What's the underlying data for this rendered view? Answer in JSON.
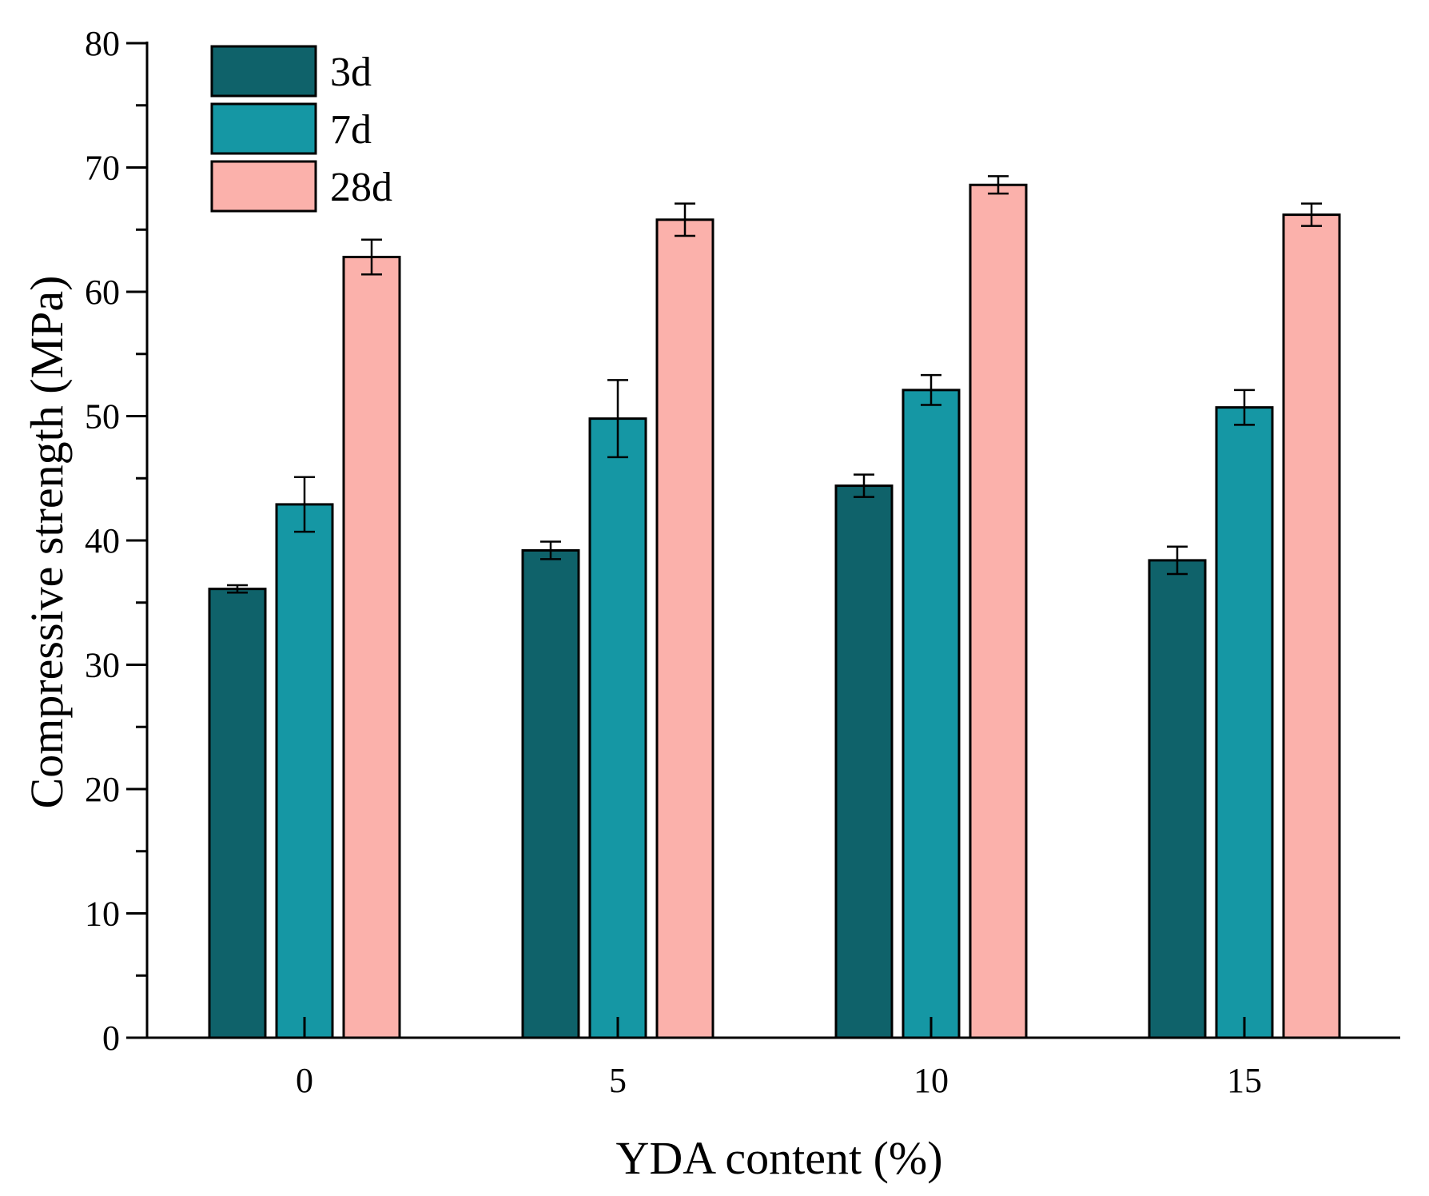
{
  "chart_data": {
    "type": "bar",
    "title": "",
    "xlabel": "YDA content (%)",
    "ylabel": "Compressive strength (MPa)",
    "categories": [
      "0",
      "5",
      "10",
      "15"
    ],
    "ylim": [
      0,
      80
    ],
    "yticks": [
      "0",
      "10",
      "20",
      "30",
      "40",
      "50",
      "60",
      "70",
      "80"
    ],
    "legend_position": "top-left",
    "grid": false,
    "series": [
      {
        "name": "3d",
        "color": "#0f626a",
        "values": [
          36.1,
          39.2,
          44.4,
          38.4
        ],
        "errors": [
          0.3,
          0.7,
          0.9,
          1.1
        ]
      },
      {
        "name": "7d",
        "color": "#1597a4",
        "values": [
          42.9,
          49.8,
          52.1,
          50.7
        ],
        "errors": [
          2.2,
          3.1,
          1.2,
          1.4
        ]
      },
      {
        "name": "28d",
        "color": "#fbb1ab",
        "values": [
          62.8,
          65.8,
          68.6,
          66.2
        ],
        "errors": [
          1.4,
          1.3,
          0.7,
          0.9
        ]
      }
    ]
  }
}
